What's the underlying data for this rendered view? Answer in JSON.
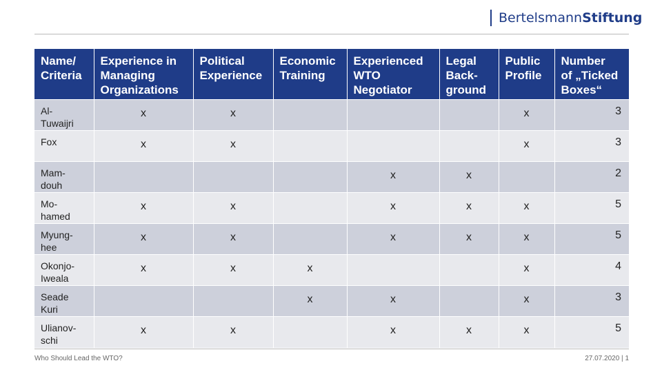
{
  "logo": {
    "part1": "Bertelsmann",
    "part2": "Stiftung"
  },
  "table": {
    "headers": [
      "Name/\nCriteria",
      "Experience in\nManaging\nOrganizations",
      "Political\nExperience",
      "Economic\nTraining",
      "Experienced\nWTO\nNegotiator",
      "Legal\nBack-\nground",
      "Public\nProfile",
      "Number\nof „Ticked\nBoxes“"
    ],
    "rows": [
      {
        "name": "Al-\nTuwaijri",
        "cells": [
          "x",
          "x",
          "",
          "",
          "",
          "x"
        ],
        "count": "3"
      },
      {
        "name": "Fox",
        "cells": [
          "x",
          "x",
          "",
          "",
          "",
          "x"
        ],
        "count": "3"
      },
      {
        "name": "Mam-\ndouh",
        "cells": [
          "",
          "",
          "",
          "x",
          "x",
          ""
        ],
        "count": "2"
      },
      {
        "name": "Mo-\nhamed",
        "cells": [
          "x",
          "x",
          "",
          "x",
          "x",
          "x"
        ],
        "count": "5"
      },
      {
        "name": "Myung-\nhee",
        "cells": [
          "x",
          "x",
          "",
          "x",
          "x",
          "x"
        ],
        "count": "5"
      },
      {
        "name": "Okonjo-\nIweala",
        "cells": [
          "x",
          "x",
          "x",
          "",
          "",
          "x"
        ],
        "count": "4"
      },
      {
        "name": "Seade\nKuri",
        "cells": [
          "",
          "",
          "x",
          "x",
          "",
          "x"
        ],
        "count": "3"
      },
      {
        "name": "Ulianov-\nschi",
        "cells": [
          "x",
          "x",
          "",
          "x",
          "x",
          "x"
        ],
        "count": "5"
      }
    ]
  },
  "footer": {
    "title": "Who Should Lead the WTO?",
    "date": "27.07.2020",
    "separator": "|",
    "page": "1"
  }
}
